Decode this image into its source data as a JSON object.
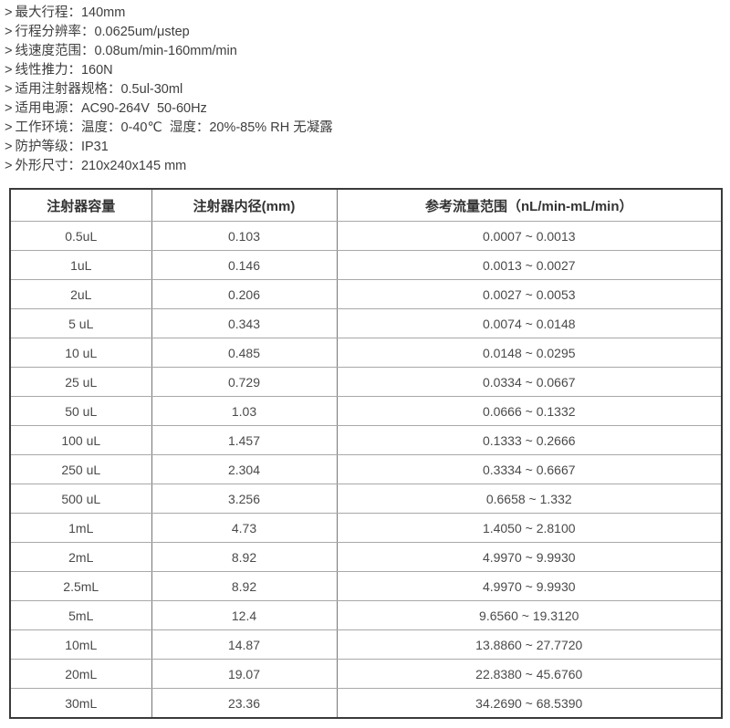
{
  "page": {
    "background_color": "#ffffff",
    "text_color": "#3e3e3e",
    "table_outer_border_color": "#3a3a3a",
    "table_inner_line_color": "#9a9a9a"
  },
  "specs": {
    "bullet": ">",
    "items": [
      "最大行程：140mm",
      "行程分辨率：0.0625um/μstep",
      "线速度范围：0.08um/min-160mm/min",
      "线性推力：160N",
      "适用注射器规格：0.5ul-30ml",
      "适用电源：AC90-264V  50-60Hz",
      "工作环境：温度：0-40℃  湿度：20%-85% RH 无凝露",
      "防护等级：IP31",
      "外形尺寸：210x240x145 mm"
    ]
  },
  "table": {
    "headers": [
      "注射器容量",
      "注射器内径(mm)",
      "参考流量范围（nL/min-mL/min）"
    ],
    "rows": [
      [
        "0.5uL",
        "0.103",
        "0.0007 ~ 0.0013"
      ],
      [
        "1uL",
        "0.146",
        "0.0013 ~ 0.0027"
      ],
      [
        "2uL",
        "0.206",
        "0.0027 ~ 0.0053"
      ],
      [
        "5 uL",
        "0.343",
        "0.0074 ~ 0.0148"
      ],
      [
        "10 uL",
        "0.485",
        "0.0148 ~ 0.0295"
      ],
      [
        "25 uL",
        "0.729",
        "0.0334 ~ 0.0667"
      ],
      [
        "50 uL",
        "1.03",
        "0.0666 ~ 0.1332"
      ],
      [
        "100 uL",
        "1.457",
        "0.1333 ~ 0.2666"
      ],
      [
        "250 uL",
        "2.304",
        "0.3334 ~ 0.6667"
      ],
      [
        "500 uL",
        "3.256",
        "0.6658 ~ 1.332"
      ],
      [
        "1mL",
        "4.73",
        "1.4050 ~ 2.8100"
      ],
      [
        "2mL",
        "8.92",
        "4.9970 ~ 9.9930"
      ],
      [
        "2.5mL",
        "8.92",
        "4.9970 ~ 9.9930"
      ],
      [
        "5mL",
        "12.4",
        "9.6560 ~ 19.3120"
      ],
      [
        "10mL",
        "14.87",
        "13.8860 ~ 27.7720"
      ],
      [
        "20mL",
        "19.07",
        "22.8380 ~ 45.6760"
      ],
      [
        "30mL",
        "23.36",
        "34.2690 ~ 68.5390"
      ]
    ]
  }
}
